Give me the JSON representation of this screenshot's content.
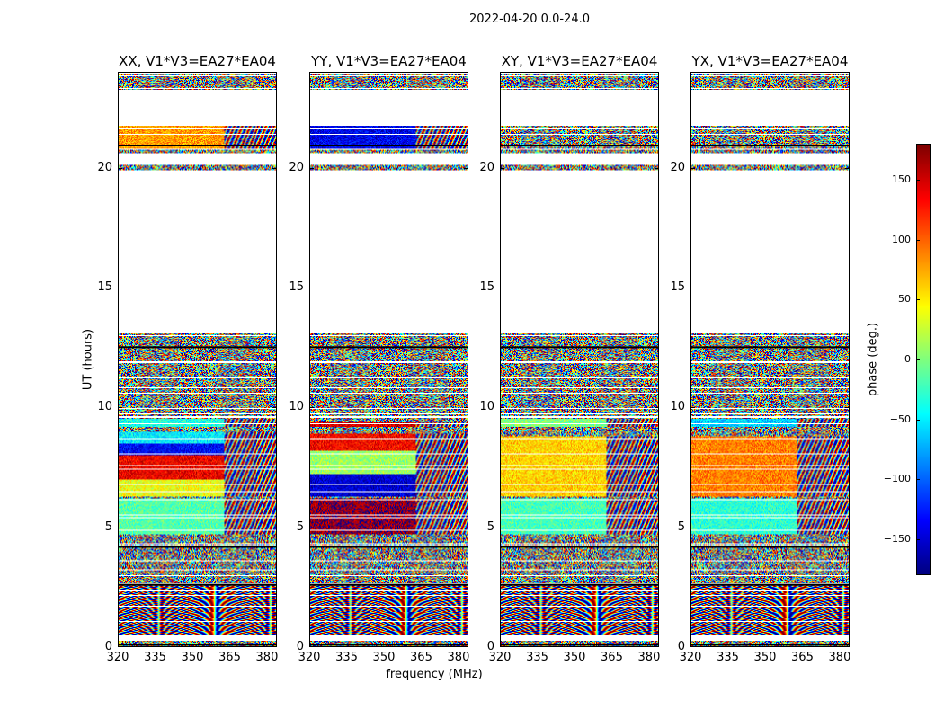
{
  "chart_data": {
    "type": "heatmap",
    "title": "2022-04-20 0.0-24.0",
    "xlabel": "frequency (MHz)",
    "ylabel": "UT (hours)",
    "xlim": [
      320,
      384
    ],
    "ylim": [
      0,
      24
    ],
    "xticks": [
      "320",
      "335",
      "350",
      "365",
      "380"
    ],
    "xtick_values": [
      320,
      335,
      350,
      365,
      380
    ],
    "yticks": [
      "0",
      "5",
      "10",
      "15",
      "20"
    ],
    "ytick_values": [
      0,
      5,
      10,
      15,
      20
    ],
    "colorbar": {
      "label": "phase (deg.)",
      "range": [
        -180,
        180
      ],
      "ticks": [
        "150",
        "100",
        "50",
        "0",
        "−50",
        "−100",
        "−150"
      ],
      "tick_values": [
        150,
        100,
        50,
        0,
        -50,
        -100,
        -150
      ],
      "colormap": "jet"
    },
    "data_segments_hours": [
      [
        0.0,
        0.25
      ],
      [
        0.45,
        2.6
      ],
      [
        2.65,
        4.2
      ],
      [
        4.25,
        9.6
      ],
      [
        9.65,
        13.2
      ],
      [
        19.95,
        20.2
      ],
      [
        20.65,
        21.8
      ],
      [
        23.3,
        24.0
      ]
    ],
    "panels": [
      {
        "title": "XX, V1*V3=EA27*EA04",
        "coherent": [
          [
            4.7,
            6.2,
            -15
          ],
          [
            6.3,
            7.0,
            40
          ],
          [
            7.0,
            8.0,
            140
          ],
          [
            8.0,
            8.5,
            -135
          ],
          [
            8.5,
            9.0,
            -50
          ],
          [
            9.2,
            9.55,
            -35
          ],
          [
            20.8,
            21.8,
            80
          ]
        ]
      },
      {
        "title": "YY, V1*V3=EA27*EA04",
        "coherent": [
          [
            4.7,
            6.2,
            170
          ],
          [
            6.3,
            7.2,
            -150
          ],
          [
            7.2,
            8.2,
            10
          ],
          [
            8.2,
            8.9,
            135
          ],
          [
            9.2,
            9.45,
            150
          ],
          [
            20.8,
            21.8,
            -140
          ]
        ]
      },
      {
        "title": "XY, V1*V3=EA27*EA04",
        "coherent": [
          [
            4.7,
            6.2,
            -20
          ],
          [
            6.3,
            8.8,
            60
          ],
          [
            9.2,
            9.55,
            0
          ]
        ]
      },
      {
        "title": "YX, V1*V3=EA27*EA04",
        "coherent": [
          [
            4.7,
            6.2,
            -30
          ],
          [
            6.3,
            8.8,
            90
          ],
          [
            9.2,
            9.55,
            -60
          ]
        ]
      }
    ]
  }
}
